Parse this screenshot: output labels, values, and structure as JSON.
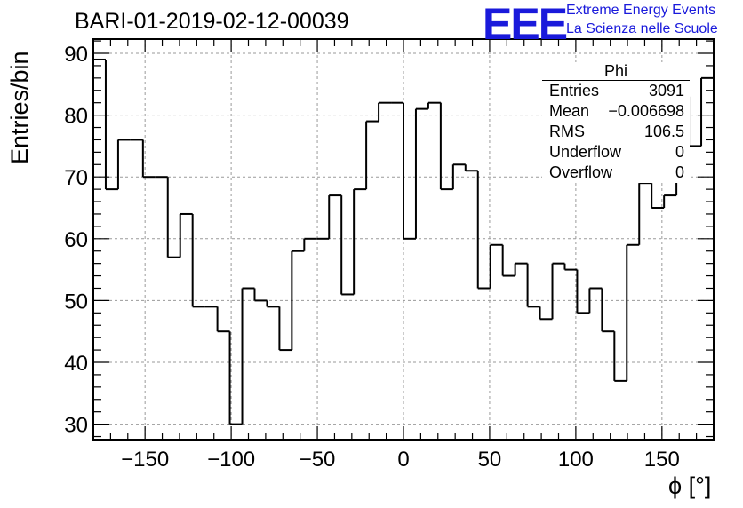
{
  "title": "BARI-01-2019-02-12-00039",
  "logo": {
    "mark": "EEE",
    "line1": "Extreme Energy Events",
    "line2": "La Scienza nelle Scuole",
    "color": "#1a1adb"
  },
  "stats_box": {
    "name": "Phi",
    "rows": [
      {
        "key": "Entries",
        "value": "3091"
      },
      {
        "key": "Mean",
        "value": "−0.006698"
      },
      {
        "key": "RMS",
        "value": "106.5"
      },
      {
        "key": "Underflow",
        "value": "0"
      },
      {
        "key": "Overflow",
        "value": "0"
      }
    ]
  },
  "chart_data": {
    "type": "histogram",
    "xlabel": "ϕ [°]",
    "ylabel": "Entries/bin",
    "xlim": [
      -180,
      180
    ],
    "ylim": [
      27.5,
      92.3
    ],
    "bin_width": 7.2,
    "bin_low_edges": [
      -180,
      -172.8,
      -165.6,
      -158.4,
      -151.2,
      -144,
      -136.8,
      -129.6,
      -122.4,
      -115.2,
      -108,
      -100.8,
      -93.6,
      -86.4,
      -79.2,
      -72,
      -64.8,
      -57.6,
      -50.4,
      -43.2,
      -36,
      -28.8,
      -21.6,
      -14.4,
      -7.2,
      0,
      7.2,
      14.4,
      21.6,
      28.8,
      36,
      43.2,
      50.4,
      57.6,
      64.8,
      72,
      79.2,
      86.4,
      93.6,
      100.8,
      108,
      115.2,
      122.4,
      129.6,
      136.8,
      144,
      151.2,
      158.4,
      165.6,
      172.8
    ],
    "values": [
      89,
      68,
      76,
      76,
      70,
      70,
      57,
      64,
      49,
      49,
      45,
      30,
      52,
      50,
      49,
      42,
      58,
      60,
      60,
      67,
      51,
      68,
      79,
      82,
      82,
      60,
      81,
      82,
      68,
      72,
      71,
      52,
      59,
      54,
      56,
      49,
      47,
      56,
      55,
      48,
      52,
      45,
      37,
      59,
      69,
      65,
      67,
      83,
      75,
      86
    ],
    "xticks": [
      -150,
      -100,
      -50,
      0,
      50,
      100,
      150
    ],
    "xtick_labels": [
      "−150",
      "−100",
      "−50",
      "0",
      "50",
      "100",
      "150"
    ],
    "yticks": [
      30,
      40,
      50,
      60,
      70,
      80,
      90
    ],
    "ytick_labels": [
      "30",
      "40",
      "50",
      "60",
      "70",
      "80",
      "90"
    ],
    "grid": true,
    "legend": "none"
  }
}
